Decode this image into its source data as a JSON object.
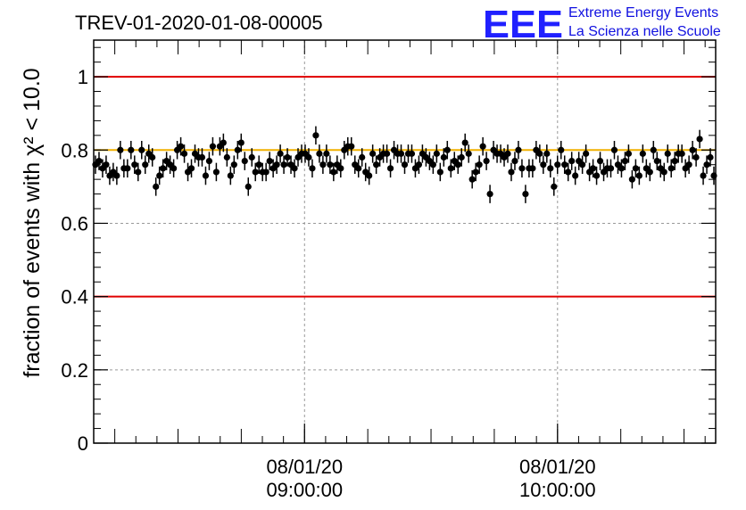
{
  "chart_data": {
    "type": "scatter",
    "title": "TREV-01-2020-01-08-00005",
    "logo": {
      "mark": "EEE",
      "line1": "Extreme Energy Events",
      "line2": "La Scienza nelle Scuole"
    },
    "ylabel": "fraction of events with χ² < 10.0",
    "ylim": [
      0,
      1.1
    ],
    "yticks": [
      "0",
      "0.2",
      "0.4",
      "0.6",
      "0.8",
      "1"
    ],
    "ytick_values": [
      0,
      0.2,
      0.4,
      0.6,
      0.8,
      1.0
    ],
    "xlim_minutes": [
      8.0,
      10.95
    ],
    "xticks": [
      {
        "minute": 9.0,
        "line1": "08/01/20",
        "line2": "09:00:00"
      },
      {
        "minute": 10.2,
        "line1": "08/01/20",
        "line2": "10:00:00"
      }
    ],
    "reference_lines": [
      {
        "y": 1.0,
        "color": "#e00000"
      },
      {
        "y": 0.4,
        "color": "#e00000"
      },
      {
        "y": 0.8,
        "color": "#f0b000"
      }
    ],
    "grid": true,
    "marker_color": "#000000",
    "error_bar": 0.025,
    "values": [
      0.76,
      0.77,
      0.75,
      0.76,
      0.73,
      0.74,
      0.73,
      0.8,
      0.75,
      0.75,
      0.8,
      0.76,
      0.74,
      0.8,
      0.76,
      0.79,
      0.78,
      0.7,
      0.73,
      0.75,
      0.77,
      0.76,
      0.75,
      0.8,
      0.81,
      0.79,
      0.74,
      0.75,
      0.79,
      0.78,
      0.78,
      0.73,
      0.77,
      0.81,
      0.74,
      0.81,
      0.82,
      0.78,
      0.73,
      0.76,
      0.8,
      0.82,
      0.77,
      0.7,
      0.78,
      0.74,
      0.76,
      0.74,
      0.74,
      0.77,
      0.75,
      0.76,
      0.79,
      0.76,
      0.78,
      0.76,
      0.75,
      0.78,
      0.79,
      0.79,
      0.78,
      0.75,
      0.84,
      0.79,
      0.76,
      0.79,
      0.76,
      0.74,
      0.76,
      0.75,
      0.8,
      0.81,
      0.81,
      0.76,
      0.75,
      0.78,
      0.74,
      0.73,
      0.79,
      0.76,
      0.78,
      0.79,
      0.79,
      0.75,
      0.8,
      0.79,
      0.79,
      0.76,
      0.79,
      0.79,
      0.75,
      0.76,
      0.79,
      0.78,
      0.77,
      0.76,
      0.79,
      0.74,
      0.78,
      0.8,
      0.75,
      0.77,
      0.76,
      0.78,
      0.82,
      0.79,
      0.72,
      0.74,
      0.76,
      0.81,
      0.77,
      0.68,
      0.8,
      0.79,
      0.79,
      0.78,
      0.79,
      0.74,
      0.77,
      0.8,
      0.75,
      0.68,
      0.75,
      0.75,
      0.8,
      0.79,
      0.76,
      0.79,
      0.75,
      0.7,
      0.76,
      0.8,
      0.76,
      0.74,
      0.77,
      0.73,
      0.77,
      0.76,
      0.79,
      0.74,
      0.75,
      0.73,
      0.77,
      0.74,
      0.75,
      0.75,
      0.8,
      0.76,
      0.75,
      0.77,
      0.79,
      0.72,
      0.75,
      0.73,
      0.79,
      0.75,
      0.74,
      0.8,
      0.77,
      0.75,
      0.74,
      0.79,
      0.75,
      0.77,
      0.79,
      0.79,
      0.75,
      0.76,
      0.8,
      0.78,
      0.83,
      0.73,
      0.76,
      0.78,
      0.73
    ]
  }
}
